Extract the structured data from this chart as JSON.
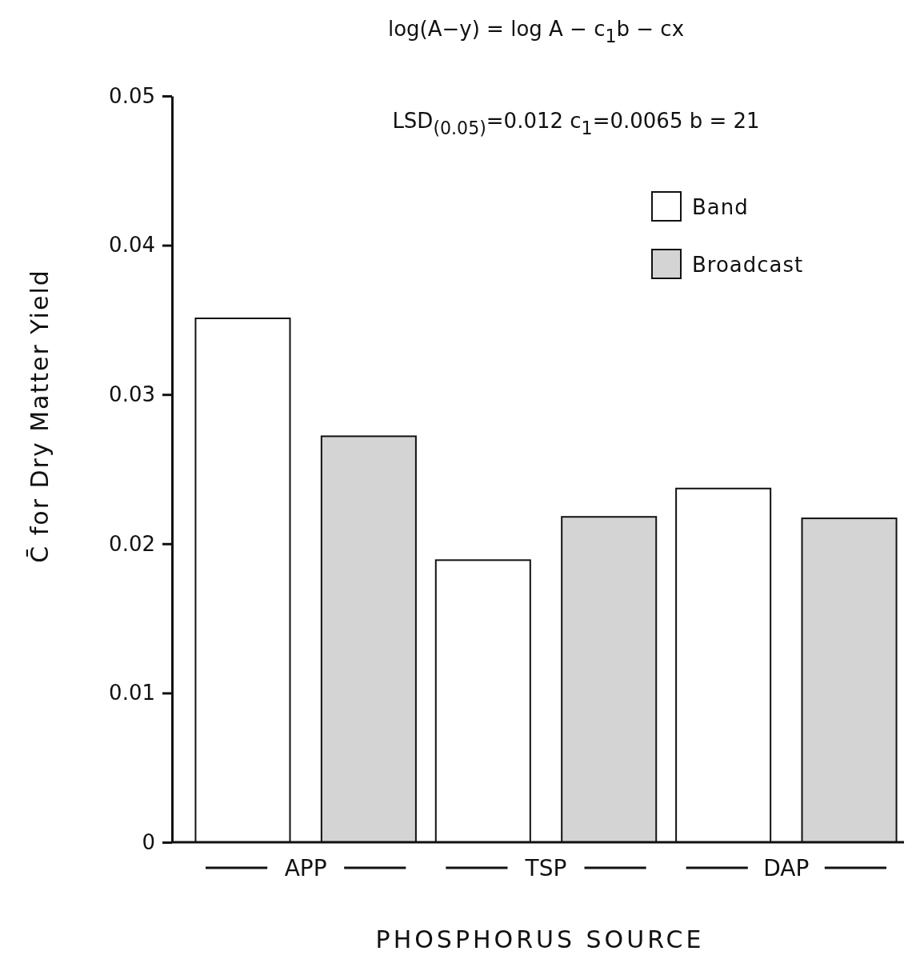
{
  "chart_data": {
    "type": "bar",
    "title": "log(A−y) = log A − c$_{1}$b − cx",
    "annotations": [
      "LSD$_{(0.05)}$=0.012   c$_{1}$=0.0065   b = 21"
    ],
    "xlabel": "PHOSPHORUS SOURCE",
    "ylabel": "C̄  for Dry Matter Yield",
    "categories": [
      "APP",
      "TSP",
      "DAP"
    ],
    "series": [
      {
        "name": "Band",
        "color": "#ffffff",
        "values": [
          0.0351,
          0.0189,
          0.0237
        ]
      },
      {
        "name": "Broadcast",
        "color": "#d4d4d4",
        "values": [
          0.0272,
          0.0218,
          0.0217
        ]
      }
    ],
    "ylim": [
      0,
      0.05
    ],
    "yticks": [
      {
        "value": 0,
        "label": "0"
      },
      0.01,
      0.02,
      0.03,
      0.04,
      0.05
    ],
    "legend": "top right",
    "grid": false
  }
}
